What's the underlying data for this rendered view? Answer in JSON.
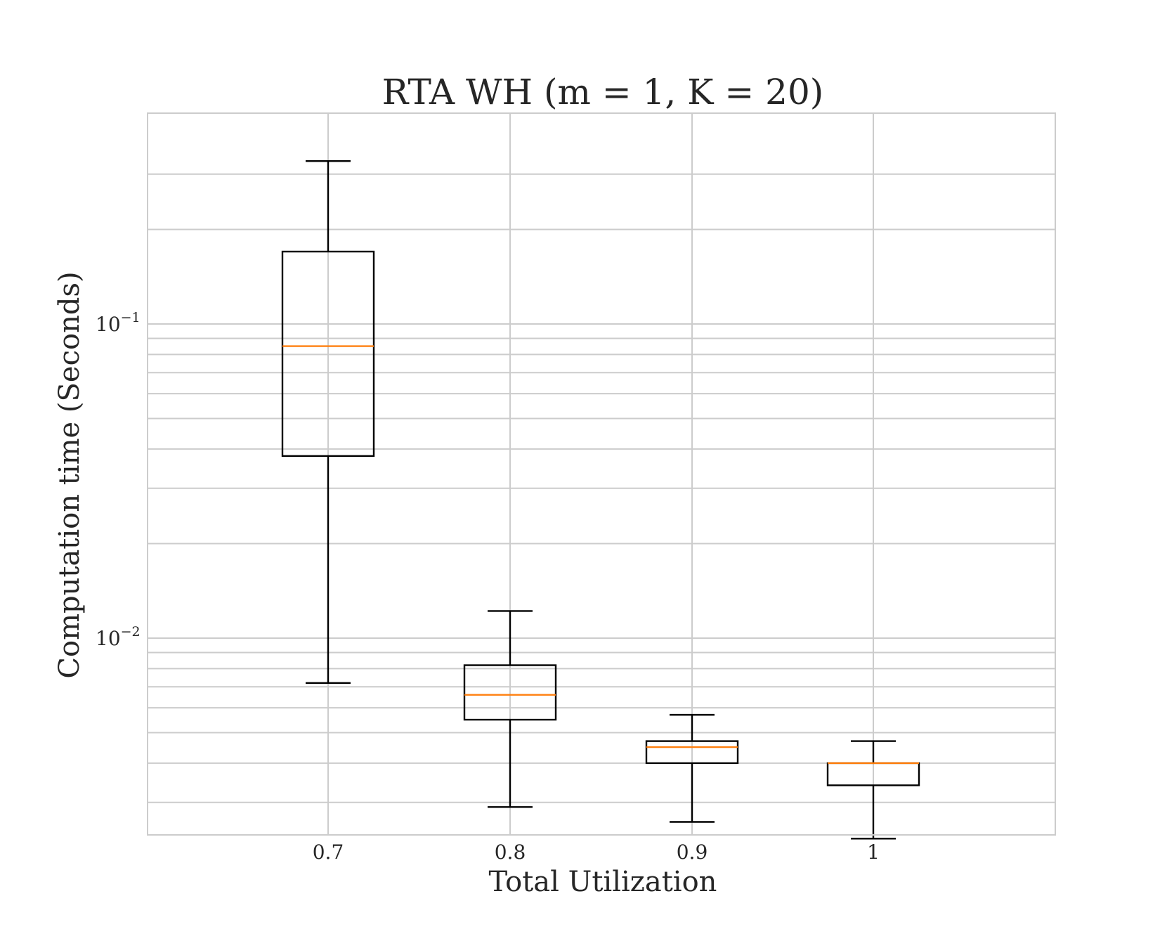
{
  "chart_data": {
    "type": "box",
    "title": "RTA WH (m = 1, K = 20)",
    "xlabel": "Total Utilization",
    "ylabel": "Computation time (Seconds)",
    "yscale": "log",
    "ylim": [
      0.0021,
      0.38
    ],
    "grid": true,
    "categories": [
      "0.7",
      "0.8",
      "0.9",
      "1"
    ],
    "y_tick_labels": [
      {
        "value": 0.1,
        "base": "10",
        "exp": "−1"
      },
      {
        "value": 0.01,
        "base": "10",
        "exp": "−2"
      }
    ],
    "boxes": [
      {
        "category": "0.7",
        "whisker_low": 0.0072,
        "q1": 0.038,
        "median": 0.085,
        "q3": 0.17,
        "whisker_high": 0.33
      },
      {
        "category": "0.8",
        "whisker_low": 0.0029,
        "q1": 0.0055,
        "median": 0.0066,
        "q3": 0.0082,
        "whisker_high": 0.0122
      },
      {
        "category": "0.9",
        "whisker_low": 0.0026,
        "q1": 0.004,
        "median": 0.0045,
        "q3": 0.0047,
        "whisker_high": 0.0057
      },
      {
        "category": "1",
        "whisker_low": 0.0023,
        "q1": 0.0034,
        "median": 0.004,
        "q3": 0.004,
        "whisker_high": 0.0047
      }
    ],
    "colors": {
      "box": "#000000",
      "median": "#ff7f0e",
      "grid": "#cccccc",
      "frame": "#cccccc"
    }
  }
}
